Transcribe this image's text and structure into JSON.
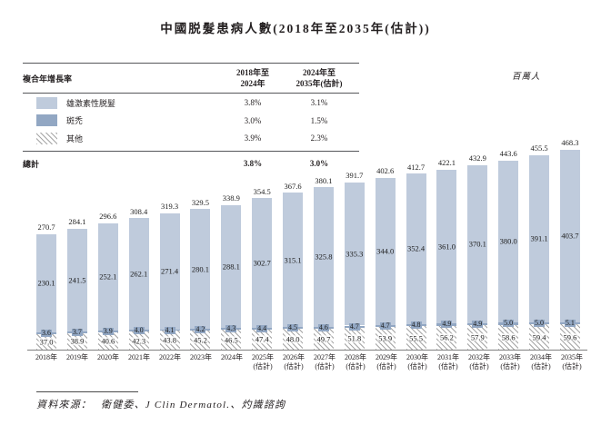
{
  "page": {
    "title": "中國脱髮患病人數(2018年至2035年(估計))",
    "unit_note": "百萬人"
  },
  "cagr_table": {
    "header": {
      "metric": "複合年增長率",
      "period1_line1": "2018年至",
      "period1_line2": "2024年",
      "period2_line1": "2024年至",
      "period2_line2": "2035年(估計)"
    },
    "rows": [
      {
        "swatch": "light-blue",
        "label": "雄激素性脱髮",
        "period1": "3.8%",
        "period2": "3.1%"
      },
      {
        "swatch": "dark-blue",
        "label": "斑禿",
        "period1": "3.0%",
        "period2": "1.5%"
      },
      {
        "swatch": "hatch",
        "label": "其他",
        "period1": "3.9%",
        "period2": "2.3%"
      }
    ],
    "total_row": {
      "label": "總計",
      "period1": "3.8%",
      "period2": "3.0%"
    }
  },
  "chart_data": {
    "type": "bar",
    "stacked": true,
    "title": "中國脱髮患病人數(2018年至2035年(估計))",
    "ylabel": "百萬人",
    "legend_position": "top-left-table",
    "grid": false,
    "ylim": [
      0,
      480
    ],
    "categories": [
      "2018年",
      "2019年",
      "2020年",
      "2021年",
      "2022年",
      "2023年",
      "2024年",
      "2025年(估計)",
      "2026年(估計)",
      "2027年(估計)",
      "2028年(估計)",
      "2029年(估計)",
      "2030年(估計)",
      "2031年(估計)",
      "2032年(估計)",
      "2033年(估計)",
      "2034年(估計)",
      "2035年(估計)"
    ],
    "stack_order": "bottom-to-top",
    "series": [
      {
        "name": "其他",
        "style": "diagonal-hatch",
        "color": "#a6a6a6",
        "values": [
          "37.0",
          "38.9",
          "40.6",
          "42.3",
          "43.8",
          "45.2",
          "46.5",
          "47.4",
          "48.0",
          "49.7",
          "51.8",
          "53.9",
          "55.5",
          "56.2",
          "57.9",
          "58.6",
          "59.4",
          "59.6"
        ]
      },
      {
        "name": "斑禿",
        "style": "solid",
        "color": "#92a7c3",
        "values": [
          "3.6",
          "3.7",
          "3.9",
          "4.0",
          "4.1",
          "4.2",
          "4.3",
          "4.4",
          "4.5",
          "4.6",
          "4.7",
          "4.7",
          "4.8",
          "4.9",
          "4.9",
          "5.0",
          "5.0",
          "5.1"
        ]
      },
      {
        "name": "雄激素性脱髮",
        "style": "solid",
        "color": "#bfcbdc",
        "values": [
          "230.1",
          "241.5",
          "252.1",
          "262.1",
          "271.4",
          "280.1",
          "288.1",
          "302.7",
          "315.1",
          "325.8",
          "335.3",
          "344.0",
          "352.4",
          "361.0",
          "370.1",
          "380.0",
          "391.1",
          "403.7"
        ]
      }
    ],
    "totals": [
      "270.7",
      "284.1",
      "296.6",
      "308.4",
      "319.3",
      "329.5",
      "338.9",
      "354.5",
      "367.6",
      "380.1",
      "391.7",
      "402.6",
      "412.7",
      "422.1",
      "432.9",
      "443.6",
      "455.5",
      "468.3"
    ]
  },
  "footer": {
    "source_label": "資料來源：",
    "source_text": "衛健委、J Clin Dermatol.、灼識諮詢"
  }
}
